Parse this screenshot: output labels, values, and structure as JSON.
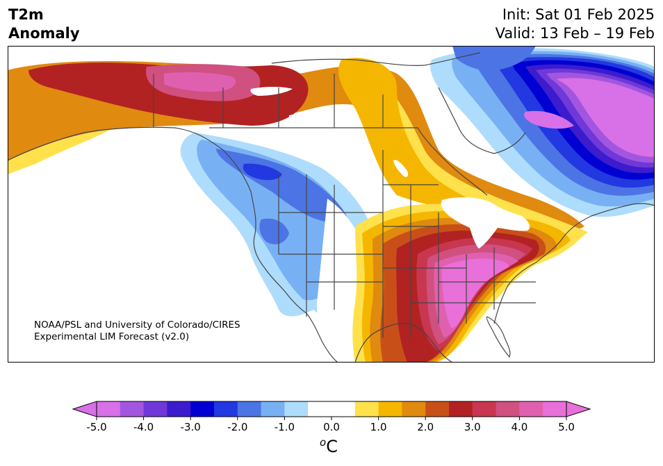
{
  "title": {
    "left_line1": "T2m",
    "left_line2": "Anomaly",
    "right_line1": "Init: Sat 01 Feb 2025",
    "right_line2": "Valid: 13 Feb – 19 Feb"
  },
  "credit": {
    "line1": "NOAA/PSL and University of Colorado/CIRES",
    "line2": "Experimental LIM Forecast (v2.0)"
  },
  "colorbar": {
    "unit_super": "o",
    "unit_main": "C",
    "ticks": [
      "-5.0",
      "-4.0",
      "-3.0",
      "-2.0",
      "-1.0",
      "0.0",
      "1.0",
      "2.0",
      "3.0",
      "4.0",
      "5.0"
    ],
    "min": -5.0,
    "max": 5.0,
    "step": 0.5,
    "colors": [
      "#d870e8",
      "#a256e0",
      "#7038d8",
      "#3c1ccc",
      "#0000d2",
      "#2238e0",
      "#4c74e4",
      "#78b0f4",
      "#aedcfc",
      "#ffffff",
      "#ffffff",
      "#ffe14c",
      "#f5b600",
      "#e08a10",
      "#c85018",
      "#b22222",
      "#c83650",
      "#d05080",
      "#e060b0",
      "#e870d8"
    ]
  },
  "map_colors": {
    "border": "#444444",
    "land_neutral": "#ffffff",
    "lakes": "#ffffff"
  }
}
